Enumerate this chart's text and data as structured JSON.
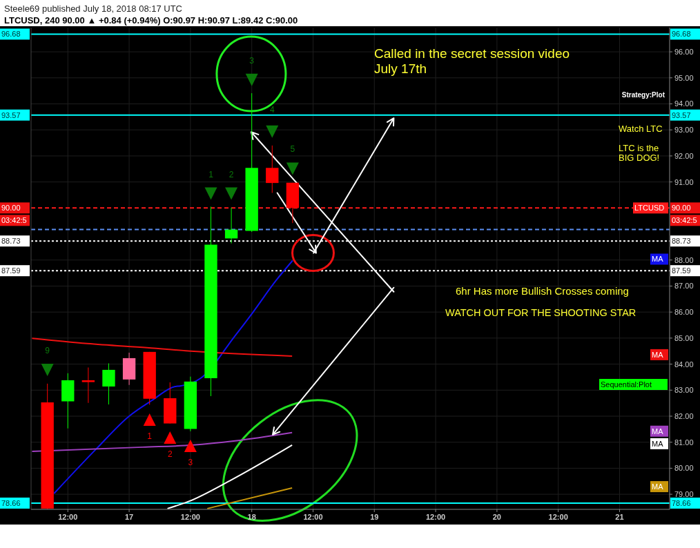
{
  "chart_data": {
    "type": "candlestick",
    "title": "LTCUSD, 240  90.00 ▲ +0.84 (+0.94%)  O:90.97  H:90.97  L:89.42  C:90.00",
    "subtitle": "Steele69 published July 18, 2018 08:17 UTC",
    "x": [
      "2018-07-16T08:00",
      "2018-07-16T12:00",
      "2018-07-16T16:00",
      "2018-07-16T20:00",
      "2018-07-17T00:00",
      "2018-07-17T04:00",
      "2018-07-17T08:00",
      "2018-07-17T12:00",
      "2018-07-17T16:00",
      "2018-07-17T20:00",
      "2018-07-18T00:00",
      "2018-07-18T04:00",
      "2018-07-18T08:00"
    ],
    "ohlc": [
      [
        82.53,
        83.25,
        78.43,
        78.45
      ],
      [
        82.57,
        83.65,
        81.53,
        83.38
      ],
      [
        83.38,
        83.87,
        82.51,
        83.31
      ],
      [
        83.14,
        84.03,
        82.45,
        83.78
      ],
      [
        83.41,
        84.44,
        83.2,
        84.23
      ],
      [
        84.47,
        84.47,
        82.44,
        82.67
      ],
      [
        82.69,
        83.3,
        81.72,
        81.72
      ],
      [
        81.51,
        83.52,
        81.42,
        83.33
      ],
      [
        83.46,
        90.05,
        82.77,
        88.59
      ],
      [
        88.83,
        90.01,
        88.64,
        89.17
      ],
      [
        89.12,
        94.41,
        89.08,
        91.54
      ],
      [
        91.54,
        92.4,
        90.58,
        90.96
      ],
      [
        90.97,
        90.97,
        89.42,
        90.0
      ]
    ],
    "colors": [
      "#ff0000",
      "#00ff00",
      "#ff0000",
      "#00ff00",
      "#ff6699",
      "#ff0000",
      "#ff0000",
      "#00ff00",
      "#00ff00",
      "#00ff00",
      "#00ff00",
      "#ff0000",
      "#ff0000"
    ],
    "series": [
      {
        "type": "line",
        "name": "MA",
        "color": "#1010ee",
        "x": [
          "2018-07-16T09:18",
          "2018-07-16T17:36",
          "2018-07-17T00:00",
          "2018-07-17T04:30",
          "2018-07-17T09:00",
          "2018-07-17T10:00",
          "2018-07-17T14:00",
          "2018-07-17T20:42",
          "2018-07-18T00:00",
          "2018-07-18T04:42",
          "2018-07-18T08:00"
        ],
        "values": [
          79.03,
          80.75,
          82.0,
          82.61,
          83.14,
          83.16,
          83.46,
          85.08,
          85.93,
          87.2,
          87.98
        ]
      },
      {
        "type": "line",
        "name": "MA",
        "color": "#ee1111",
        "x": [
          "2018-07-16T05:00",
          "2018-07-16T15:48",
          "2018-07-17T03:30",
          "2018-07-17T14:18",
          "2018-07-18T07:54"
        ],
        "values": [
          84.99,
          84.79,
          84.63,
          84.47,
          84.31
        ]
      },
      {
        "type": "line",
        "name": "MA",
        "color": "#a040c0",
        "x": [
          "2018-07-16T05:00",
          "2018-07-17T02:36",
          "2018-07-17T12:30",
          "2018-07-17T20:42",
          "2018-07-18T07:54"
        ],
        "values": [
          80.65,
          80.81,
          80.89,
          81.05,
          81.37
        ]
      },
      {
        "type": "line",
        "name": "MA",
        "color": "#ffffff",
        "x": [
          "2018-07-17T07:30",
          "2018-07-17T11:36",
          "2018-07-17T19:42",
          "2018-07-18T07:54"
        ],
        "values": [
          78.45,
          78.72,
          79.52,
          80.89
        ]
      },
      {
        "type": "line",
        "name": "MA",
        "color": "#c8960a",
        "x": [
          "2018-07-17T15:18",
          "2018-07-18T07:54"
        ],
        "values": [
          78.45,
          79.24
        ]
      },
      {
        "type": "scatter",
        "marker": "triangle",
        "color": "#0a7a0a",
        "x": [
          "2018-07-16T08:00",
          "2018-07-17T16:00",
          "2018-07-17T20:00",
          "2018-07-18T00:00",
          "2018-07-18T04:00",
          "2018-07-18T08:00"
        ],
        "values": [
          83.78,
          90.55,
          90.55,
          94.92,
          92.93,
          91.51
        ]
      },
      {
        "type": "scatter",
        "marker": "triangle",
        "color": "#ff0000",
        "x": [
          "2018-07-17T04:00",
          "2018-07-17T08:00",
          "2018-07-17T12:00"
        ],
        "values": [
          81.87,
          81.18,
          80.86
        ]
      }
    ],
    "xlim": [
      "2018-07-16T04:48",
      "2018-07-21T09:48"
    ],
    "xticks": [
      {
        "value": "2018-07-16T12:00",
        "label": "12:00"
      },
      {
        "value": "2018-07-17",
        "label": "17"
      },
      {
        "value": "2018-07-17T12:00",
        "label": "12:00"
      },
      {
        "value": "2018-07-18",
        "label": "18"
      },
      {
        "value": "2018-07-18T12:00",
        "label": "12:00"
      },
      {
        "value": "2018-07-19",
        "label": "19"
      },
      {
        "value": "2018-07-19T12:00",
        "label": "12:00"
      },
      {
        "value": "2018-07-20",
        "label": "20"
      },
      {
        "value": "2018-07-20T12:00",
        "label": "12:00"
      },
      {
        "value": "2018-07-21",
        "label": "21"
      }
    ],
    "ylim": [
      78.42,
      96.93
    ],
    "yticks": [
      {
        "value": 79,
        "label": "79.00"
      },
      {
        "value": 80,
        "label": "80.00"
      },
      {
        "value": 81,
        "label": "81.00"
      },
      {
        "value": 82,
        "label": "82.00"
      },
      {
        "value": 83,
        "label": "83.00"
      },
      {
        "value": 84,
        "label": "84.00"
      },
      {
        "value": 85,
        "label": "85.00"
      },
      {
        "value": 86,
        "label": "86.00"
      },
      {
        "value": 87,
        "label": "87.00"
      },
      {
        "value": 88,
        "label": "88.00"
      },
      {
        "value": 91,
        "label": "91.00"
      },
      {
        "value": 92,
        "label": "92.00"
      },
      {
        "value": 93,
        "label": "93.00"
      },
      {
        "value": 94,
        "label": "94.00"
      },
      {
        "value": 95,
        "label": "95.00"
      },
      {
        "value": 96,
        "label": "96.00"
      }
    ],
    "grid": true,
    "ref_lines": [
      {
        "axis": "y",
        "value": 96.68,
        "label": "96.68",
        "color": "#00ffff",
        "line_style": "solid"
      },
      {
        "axis": "y",
        "value": 93.57,
        "label": "93.57",
        "color": "#00ffff",
        "line_style": "solid"
      },
      {
        "axis": "y",
        "value": 78.66,
        "label": "78.66",
        "color": "#00ffff",
        "line_style": "solid"
      },
      {
        "axis": "y",
        "value": 90.0,
        "label": "LTCUSD",
        "color": "#ff1a1a",
        "line_style": "dashed"
      },
      {
        "axis": "y",
        "value": 89.17,
        "color": "#5b8def",
        "line_style": "dashed"
      },
      {
        "axis": "y",
        "value": 88.73,
        "label": "88.73",
        "color": "#ffffff",
        "line_style": "dotted"
      },
      {
        "axis": "y",
        "value": 87.59,
        "label": "87.59",
        "color": "#ffffff",
        "line_style": "dotted"
      }
    ],
    "annotations": [
      "Called in the secret session video",
      "July 17th",
      "Strategy:Plot",
      "Watch LTC",
      "LTC is the",
      "BIG DOG!",
      "6hr Has more Bullish Crosses coming",
      "WATCH OUT FOR THE SHOOTING STAR",
      "Sequential:Plot",
      "90.00",
      "03:42:5",
      "9",
      "1",
      "2",
      "3",
      "4",
      "5",
      "1",
      "2",
      "3"
    ]
  }
}
